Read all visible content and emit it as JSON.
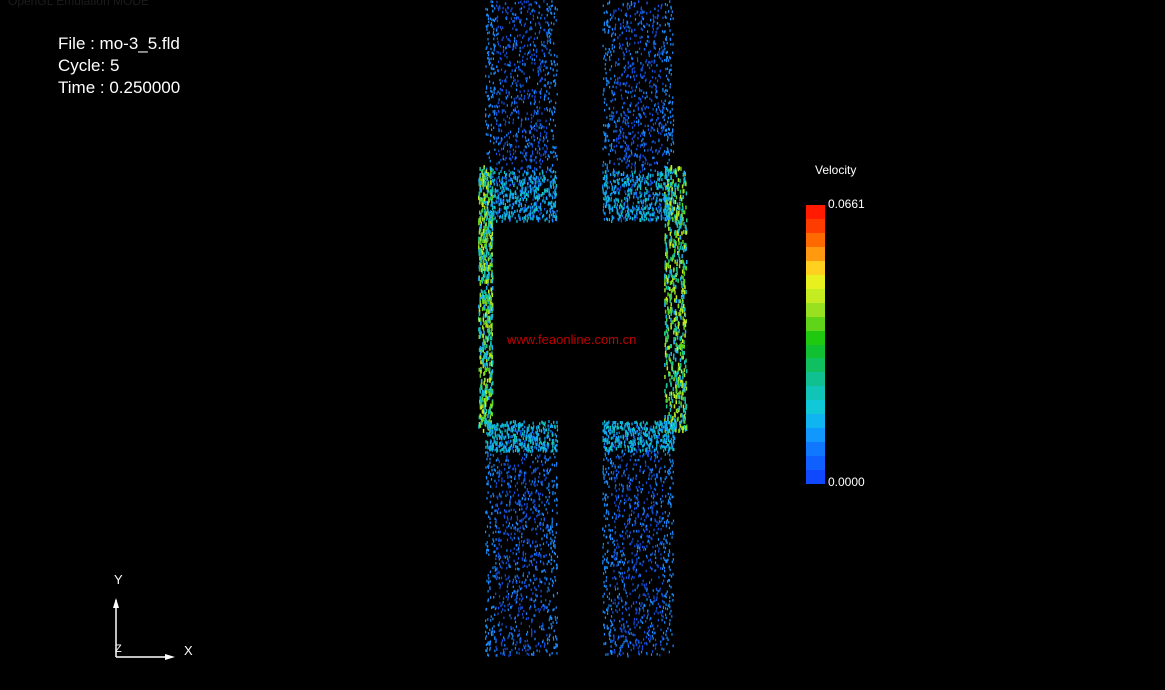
{
  "header": {
    "faint_title": "OpenGL Emulation MODE"
  },
  "info": {
    "file": "File : mo-3_5.fld",
    "cycle": "Cycle: 5",
    "time": "Time : 0.250000"
  },
  "watermark": "www.feaonline.com.cn",
  "legend": {
    "title": "Velocity",
    "max": "0.0661",
    "min": "0.0000",
    "colors": [
      "#ff1a00",
      "#ff3c00",
      "#ff6a00",
      "#ff9a10",
      "#ffd020",
      "#e8f020",
      "#c4ec20",
      "#98e020",
      "#60d418",
      "#20c810",
      "#10c030",
      "#10c060",
      "#10c090",
      "#10c4b8",
      "#10c8d8",
      "#10b4f0",
      "#1098ff",
      "#1078ff",
      "#1060ff",
      "#1048ff"
    ]
  },
  "axes": {
    "y": "Y",
    "x": "X",
    "z": "Z"
  }
}
